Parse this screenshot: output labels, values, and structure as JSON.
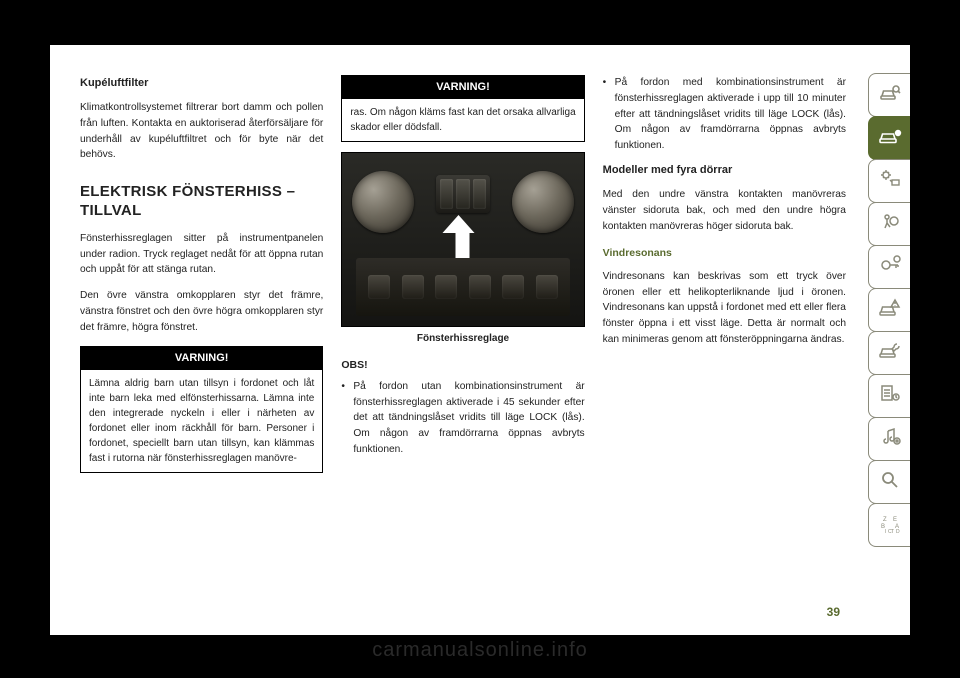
{
  "page_number": "39",
  "watermark": "carmanualsonline.info",
  "col1": {
    "h_kupeluft": "Kupéluftfilter",
    "p_kupeluft": "Klimatkontrollsystemet filtrerar bort damm och pollen från luften. Kontakta en auktoriserad återförsäljare för underhåll av kupéluftfiltret och för byte när det behövs.",
    "h_section": "ELEKTRISK FÖNSTERHISS – TILLVAL",
    "p_intro1": "Fönsterhissreglagen sitter på instrumentpanelen under radion. Tryck reglaget nedåt för att öppna rutan och uppåt för att stänga rutan.",
    "p_intro2": "Den övre vänstra omkopplaren styr det främre, vänstra fönstret och den övre högra omkopplaren styr det främre, högra fönstret.",
    "warn_title": "VARNING!",
    "warn_body": "Lämna aldrig barn utan tillsyn i fordonet och låt inte barn leka med elfönsterhissarna. Lämna inte den integrerade nyckeln i eller i närheten av fordonet eller inom räckhåll för barn. Personer i fordonet, speciellt barn utan tillsyn, kan klämmas fast i rutorna när fönsterhissreglagen manövre-"
  },
  "col2": {
    "warn_title": "VARNING!",
    "warn_body": "ras. Om någon kläms fast kan det orsaka allvarliga skador eller dödsfall.",
    "caption": "Fönsterhissreglage",
    "obs": "OBS!",
    "bullet1": "På fordon utan kombinationsinstrument är fönsterhissreglagen aktiverade i 45 sekunder efter det att tändningslåset vridits till läge LOCK (lås). Om någon av framdörrarna öppnas avbryts funktionen."
  },
  "col3": {
    "bullet1": "På fordon med kombinationsinstrument är fönsterhissreglagen aktiverade i upp till 10 minuter efter att tändningslåset vridits till läge LOCK (lås). Om någon av framdörrarna öppnas avbryts funktionen.",
    "h_fourdoor": "Modeller med fyra dörrar",
    "p_fourdoor": "Med den undre vänstra kontakten manövreras vänster sidoruta bak, och med den undre högra kontakten manövreras höger sidoruta bak.",
    "h_vind": "Vindresonans",
    "p_vind": "Vindresonans kan beskrivas som ett tryck över öronen eller ett helikopterliknande ljud i öronen. Vindresonans kan uppstå i fordonet med ett eller flera fönster öppna i ett visst läge. Detta är normalt och kan minimeras genom att fönsteröppningarna ändras."
  },
  "tabs": [
    {
      "name": "tab-search-car",
      "icon": "carsearch",
      "active": false
    },
    {
      "name": "tab-car-info",
      "icon": "carinfo",
      "active": true
    },
    {
      "name": "tab-climate",
      "icon": "climate",
      "active": false
    },
    {
      "name": "tab-airbag",
      "icon": "airbag",
      "active": false
    },
    {
      "name": "tab-key",
      "icon": "key",
      "active": false
    },
    {
      "name": "tab-warning",
      "icon": "carwarn",
      "active": false
    },
    {
      "name": "tab-service",
      "icon": "service",
      "active": false
    },
    {
      "name": "tab-checklist",
      "icon": "checklist",
      "active": false
    },
    {
      "name": "tab-media",
      "icon": "media",
      "active": false
    },
    {
      "name": "tab-search",
      "icon": "search",
      "active": false
    },
    {
      "name": "tab-index",
      "icon": "index",
      "active": false
    }
  ]
}
